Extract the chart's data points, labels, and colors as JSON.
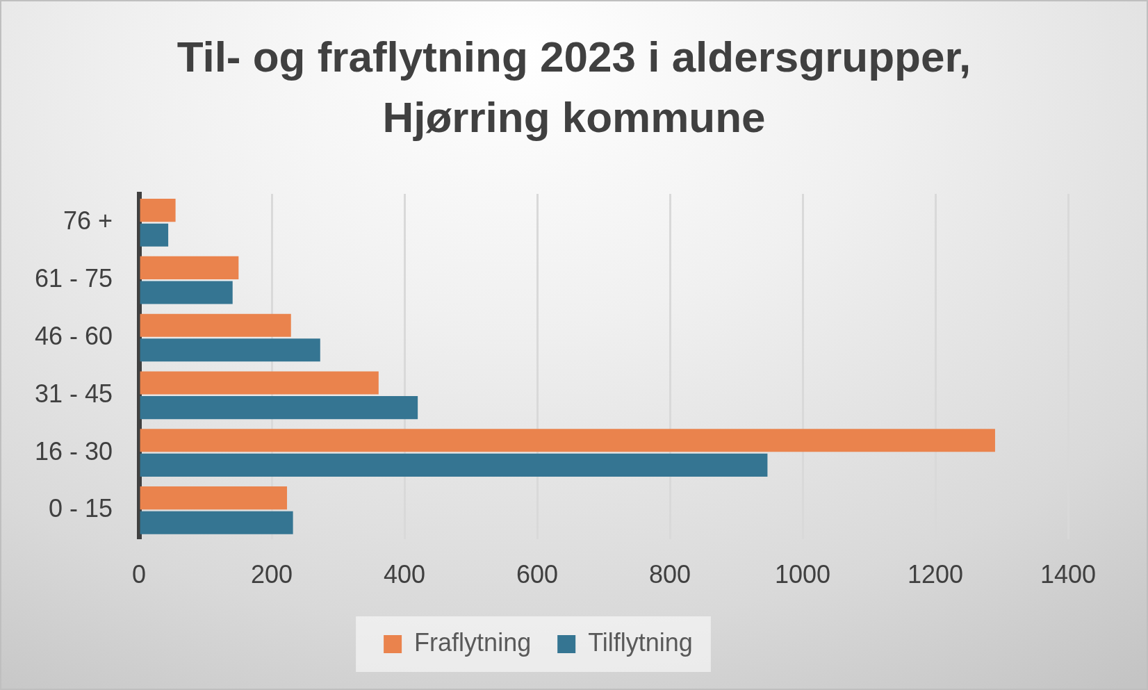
{
  "chart_data": {
    "type": "bar",
    "orientation": "horizontal",
    "title": "Til- og fraflytning 2023 i aldersgrupper, Hjørring kommune",
    "categories": [
      "76 +",
      "61 - 75",
      "46 - 60",
      "31 - 45",
      "16 - 30",
      "0 - 15"
    ],
    "series": [
      {
        "name": "Fraflytning",
        "color": "#ea834d",
        "values": [
          55,
          150,
          229,
          361,
          1290,
          223
        ]
      },
      {
        "name": "Tilflytning",
        "color": "#357592",
        "values": [
          44,
          141,
          273,
          420,
          947,
          232
        ]
      }
    ],
    "xlim": [
      0,
      1400
    ],
    "xticks": [
      0,
      200,
      400,
      600,
      800,
      1000,
      1200,
      1400
    ],
    "grid": "x",
    "legend": "bottom"
  }
}
